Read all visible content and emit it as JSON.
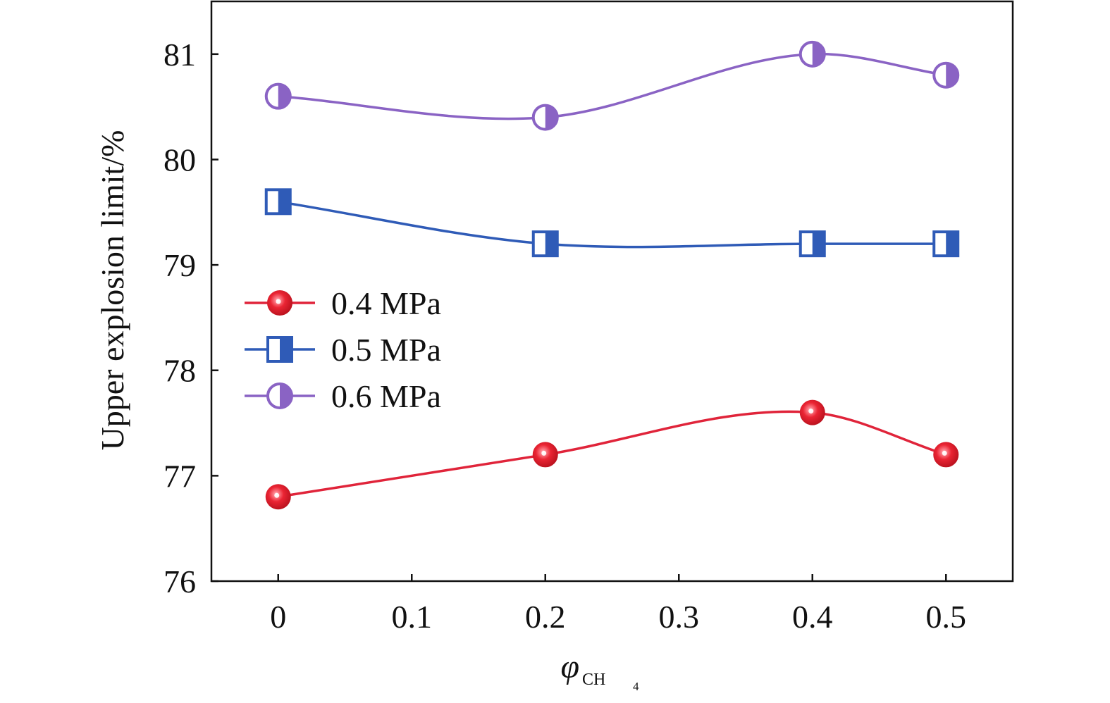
{
  "chart_data": {
    "type": "line",
    "xlabel": "φ",
    "xlabel_subscript_main": "CH",
    "xlabel_subscript_num": "4",
    "ylabel": "Upper explosion limit/%",
    "x_ticks": [
      "0",
      "0.1",
      "0.2",
      "0.3",
      "0.4",
      "0.5"
    ],
    "y_ticks": [
      "76",
      "77",
      "78",
      "79",
      "80",
      "81"
    ],
    "xlim": [
      -0.05,
      0.55
    ],
    "ylim": [
      76,
      81.5
    ],
    "grid": false,
    "legend_position": "left-middle",
    "x": [
      0,
      0.2,
      0.4,
      0.5
    ],
    "series": [
      {
        "name": "0.4 MPa",
        "values": [
          76.8,
          77.2,
          77.6,
          77.2
        ],
        "color": "#e0243a",
        "marker": "sphere"
      },
      {
        "name": "0.5 MPa",
        "values": [
          79.6,
          79.2,
          79.2,
          79.2
        ],
        "color": "#2f5bb7",
        "marker": "half-square"
      },
      {
        "name": "0.6 MPa",
        "values": [
          80.6,
          80.4,
          81.0,
          80.8
        ],
        "color": "#8a63c4",
        "marker": "half-circle"
      }
    ]
  }
}
